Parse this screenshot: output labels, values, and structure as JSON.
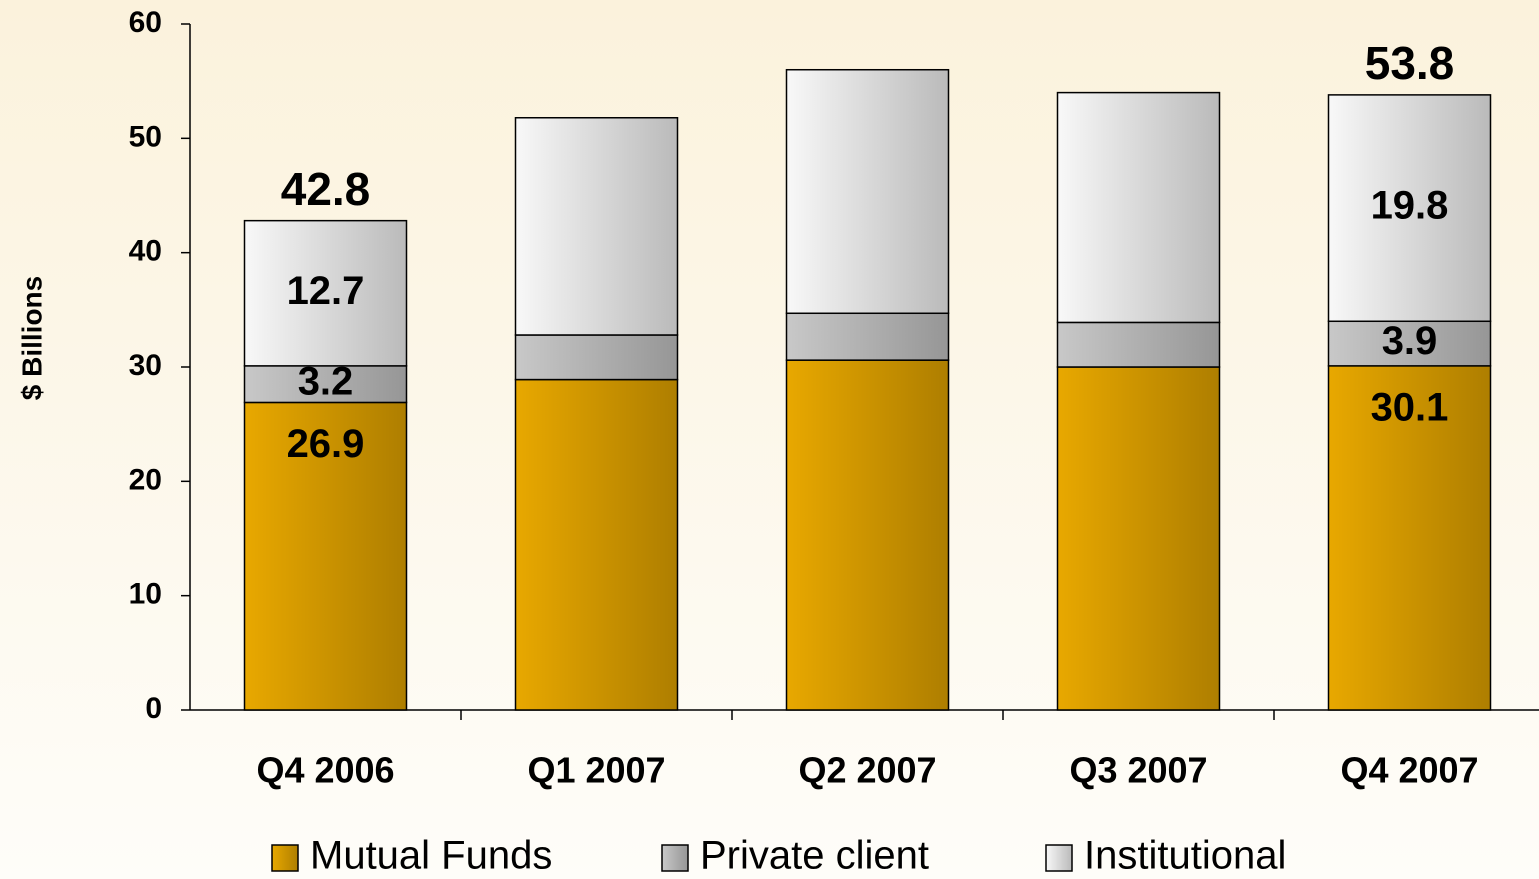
{
  "chart_data": {
    "type": "stacked_bar",
    "y_label": "$ Billions",
    "categories": [
      "Q4 2006",
      "Q1 2007",
      "Q2 2007",
      "Q3 2007",
      "Q4 2007"
    ],
    "series": [
      {
        "name": "Mutual Funds",
        "color": "#e8a800",
        "values": [
          26.9,
          28.9,
          30.6,
          30.0,
          30.1
        ]
      },
      {
        "name": "Private client",
        "color": "#c8c8c8",
        "values": [
          3.2,
          3.9,
          4.1,
          3.9,
          3.9
        ]
      },
      {
        "name": "Institutional",
        "color": "#f8f8f8",
        "values": [
          12.7,
          19.0,
          21.3,
          20.1,
          19.8
        ]
      }
    ],
    "show_labels": [
      true,
      false,
      false,
      false,
      true
    ],
    "totals": [
      42.8,
      null,
      null,
      null,
      53.8
    ],
    "ylim": [
      0,
      60
    ],
    "yticks": [
      0,
      10,
      20,
      30,
      40,
      50,
      60
    ],
    "legend": "bottom"
  }
}
